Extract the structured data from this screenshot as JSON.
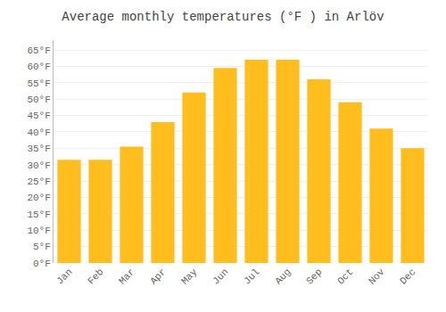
{
  "chart_data": {
    "type": "bar",
    "title": "Average monthly temperatures (°F ) in Arlöv",
    "categories": [
      "Jan",
      "Feb",
      "Mar",
      "Apr",
      "May",
      "Jun",
      "Jul",
      "Aug",
      "Sep",
      "Oct",
      "Nov",
      "Dec"
    ],
    "values": [
      31.5,
      31.5,
      35.5,
      43.0,
      52.0,
      59.5,
      62.0,
      62.0,
      56.0,
      49.0,
      41.0,
      35.0
    ],
    "color": "#FFBE1E",
    "ylim": [
      0,
      68
    ],
    "yticks": [
      {
        "value": 0,
        "label": "0°F"
      },
      {
        "value": 5,
        "label": "5°F"
      },
      {
        "value": 10,
        "label": "10°F"
      },
      {
        "value": 15,
        "label": "15°F"
      },
      {
        "value": 20,
        "label": "20°F"
      },
      {
        "value": 25,
        "label": "25°F"
      },
      {
        "value": 30,
        "label": "30°F"
      },
      {
        "value": 35,
        "label": "35°F"
      },
      {
        "value": 40,
        "label": "40°F"
      },
      {
        "value": 45,
        "label": "45°F"
      },
      {
        "value": 50,
        "label": "50°F"
      },
      {
        "value": 55,
        "label": "55°F"
      },
      {
        "value": 60,
        "label": "60°F"
      },
      {
        "value": 65,
        "label": "65°F"
      }
    ],
    "grid": true
  }
}
